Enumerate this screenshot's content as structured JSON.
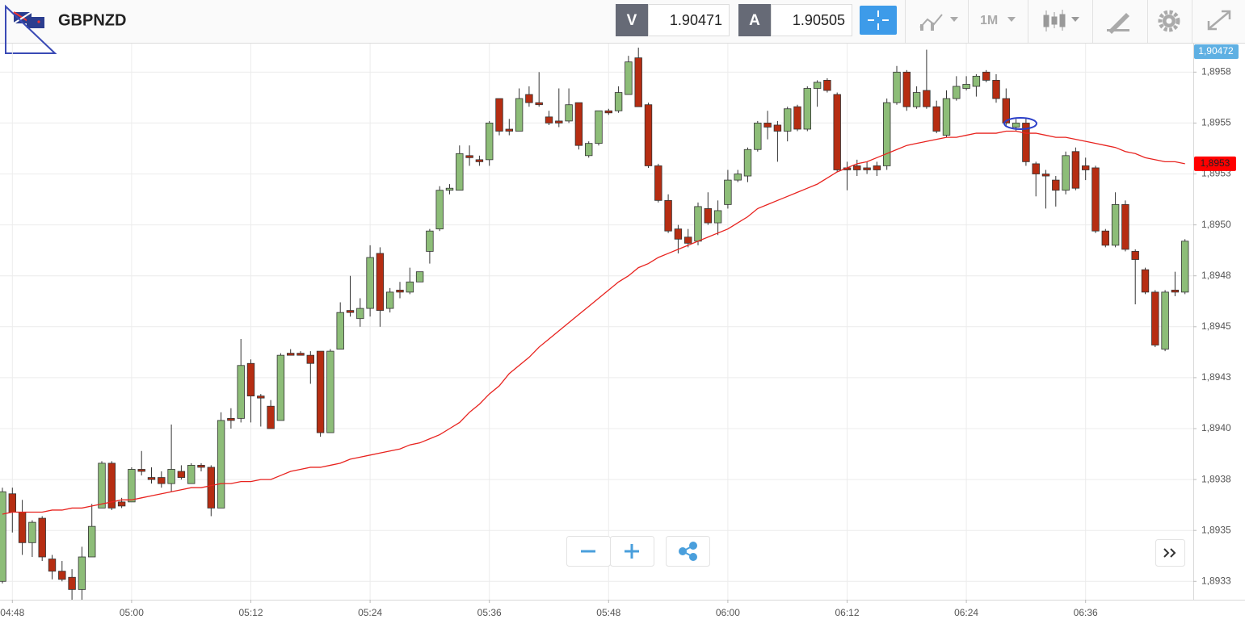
{
  "toolbar": {
    "bid_label": "V",
    "bid": 1.90471,
    "ask_label": "A",
    "ask": 1.90505,
    "timeframe": "1M"
  },
  "chart_data": {
    "type": "candlestick",
    "title": "GBPNZD",
    "categories": [
      null,
      "04:48",
      null,
      null,
      null,
      null,
      null,
      null,
      null,
      null,
      null,
      null,
      null,
      "05:00",
      null,
      null,
      null,
      null,
      null,
      null,
      null,
      null,
      null,
      null,
      null,
      "05:12",
      null,
      null,
      null,
      null,
      null,
      null,
      null,
      null,
      null,
      null,
      null,
      "05:24",
      null,
      null,
      null,
      null,
      null,
      null,
      null,
      null,
      null,
      null,
      null,
      "05:36",
      null,
      null,
      null,
      null,
      null,
      null,
      null,
      null,
      null,
      null,
      null,
      "05:48",
      null,
      null,
      null,
      null,
      null,
      null,
      null,
      null,
      null,
      null,
      null,
      "06:00",
      null,
      null,
      null,
      null,
      null,
      null,
      null,
      null,
      null,
      null,
      null,
      "06:12",
      null,
      null,
      null,
      null,
      null,
      null,
      null,
      null,
      null,
      null,
      null,
      "06:24",
      null,
      null,
      null,
      null,
      null,
      null,
      null,
      null,
      null,
      null,
      null,
      "06:36",
      null,
      null,
      null,
      null,
      null,
      null,
      null,
      null,
      null,
      null
    ],
    "open": [
      1.89325,
      1.89368,
      1.89359,
      1.89344,
      1.89356,
      1.89336,
      1.8933,
      1.89327,
      1.89321,
      1.89337,
      1.89361,
      1.89383,
      1.89364,
      1.89364,
      1.8938,
      1.89376,
      1.89376,
      1.89373,
      1.89379,
      1.89373,
      1.89382,
      1.89381,
      1.89361,
      1.89405,
      1.89405,
      1.89432,
      1.89416,
      1.89411,
      1.89404,
      1.89437,
      1.89437,
      1.89436,
      1.89438,
      1.89398,
      1.89439,
      1.89458,
      1.89454,
      1.89459,
      1.89486,
      1.89459,
      1.89468,
      1.89467,
      1.89472,
      1.89487,
      1.89498,
      1.89517,
      1.89517,
      1.89534,
      1.89532,
      1.89532,
      1.89562,
      1.89547,
      1.89546,
      1.89564,
      1.8956,
      1.89553,
      1.89551,
      1.89551,
      1.8956,
      1.89534,
      1.8954,
      1.89556,
      1.89556,
      1.89564,
      1.89582,
      1.89559,
      1.89529,
      1.89512,
      1.89498,
      1.89494,
      1.89492,
      1.89508,
      1.89501,
      1.8951,
      1.89522,
      1.89524,
      1.89537,
      1.8955,
      1.89549,
      1.89546,
      1.89558,
      1.89547,
      1.89567,
      1.89571,
      1.89564,
      1.89528,
      1.89529,
      1.89528,
      1.89529,
      1.89529,
      1.8956,
      1.89575,
      1.89558,
      1.89566,
      1.89558,
      1.89544,
      1.89562,
      1.89567,
      1.89568,
      1.89575,
      1.89571,
      1.89562,
      1.89548,
      1.8955,
      1.8953,
      1.89525,
      1.89522,
      1.89517,
      1.89536,
      1.89529,
      1.89528,
      1.89497,
      1.8949,
      1.8951,
      1.89487,
      1.89478,
      1.89467,
      1.89439,
      1.89468,
      1.89467
    ],
    "high": [
      1.89371,
      1.89371,
      1.89365,
      1.89355,
      1.89357,
      1.89338,
      1.89335,
      1.89331,
      1.89342,
      1.89363,
      1.89384,
      1.89384,
      1.89366,
      1.89381,
      1.89389,
      1.89381,
      1.89379,
      1.89402,
      1.89382,
      1.89383,
      1.89383,
      1.89382,
      1.89408,
      1.8941,
      1.89444,
      1.89434,
      1.89417,
      1.89414,
      1.89437,
      1.89439,
      1.89438,
      1.89438,
      1.89438,
      1.89439,
      1.89462,
      1.89475,
      1.89464,
      1.8949,
      1.89489,
      1.89469,
      1.89472,
      1.89479,
      1.89477,
      1.89498,
      1.89519,
      1.8952,
      1.89539,
      1.89539,
      1.89534,
      1.89551,
      1.89562,
      1.89552,
      1.89567,
      1.89568,
      1.89575,
      1.89556,
      1.89567,
      1.89567,
      1.8956,
      1.89541,
      1.89556,
      1.89557,
      1.89568,
      1.89583,
      1.89587,
      1.8956,
      1.8953,
      1.89515,
      1.895,
      1.89498,
      1.89511,
      1.89516,
      1.89512,
      1.89527,
      1.89527,
      1.89538,
      1.89551,
      1.89556,
      1.89551,
      1.89558,
      1.89559,
      1.89568,
      1.89571,
      1.89572,
      1.89565,
      1.89531,
      1.89532,
      1.89531,
      1.89531,
      1.89562,
      1.89578,
      1.89576,
      1.89568,
      1.89586,
      1.89561,
      1.89566,
      1.89573,
      1.89573,
      1.89574,
      1.89576,
      1.89574,
      1.89567,
      1.89552,
      1.89552,
      1.89531,
      1.89527,
      1.89524,
      1.89536,
      1.89538,
      1.89533,
      1.89529,
      1.89498,
      1.89516,
      1.89512,
      1.89488,
      1.89479,
      1.89468,
      1.89468,
      1.89477,
      1.89493
    ],
    "low": [
      1.89324,
      1.89349,
      1.89338,
      1.89337,
      1.89335,
      1.89326,
      1.89325,
      1.89316,
      1.89316,
      1.89337,
      1.89361,
      1.8936,
      1.89361,
      1.89364,
      1.89377,
      1.89373,
      1.89371,
      1.89369,
      1.89375,
      1.89373,
      1.89379,
      1.89357,
      1.89361,
      1.894,
      1.89403,
      1.89403,
      1.89401,
      1.894,
      1.89404,
      1.89436,
      1.89436,
      1.89422,
      1.89396,
      1.89398,
      1.89439,
      1.89455,
      1.8945,
      1.89455,
      1.8945,
      1.89457,
      1.89464,
      1.89466,
      1.89472,
      1.89481,
      1.89497,
      1.89515,
      1.89517,
      1.89529,
      1.89529,
      1.89529,
      1.89544,
      1.89544,
      1.89546,
      1.89558,
      1.89558,
      1.89549,
      1.89548,
      1.8955,
      1.89537,
      1.89533,
      1.89539,
      1.89554,
      1.89555,
      1.89564,
      1.89558,
      1.89528,
      1.89511,
      1.89496,
      1.89486,
      1.89489,
      1.8949,
      1.895,
      1.89495,
      1.89508,
      1.89521,
      1.89521,
      1.89536,
      1.89542,
      1.89531,
      1.89541,
      1.89546,
      1.89546,
      1.89558,
      1.89565,
      1.89526,
      1.89517,
      1.89524,
      1.89525,
      1.89524,
      1.89527,
      1.89559,
      1.89556,
      1.89557,
      1.89557,
      1.89545,
      1.89543,
      1.89561,
      1.89566,
      1.89563,
      1.8957,
      1.8956,
      1.89548,
      1.89546,
      1.89529,
      1.89514,
      1.89508,
      1.89509,
      1.89515,
      1.89517,
      1.89522,
      1.89496,
      1.89489,
      1.89489,
      1.89487,
      1.89461,
      1.89466,
      1.8944,
      1.89438,
      1.89465,
      1.89466
    ],
    "close": [
      1.89369,
      1.89359,
      1.89344,
      1.89354,
      1.89337,
      1.8933,
      1.89326,
      1.89321,
      1.89337,
      1.89352,
      1.89383,
      1.89361,
      1.89362,
      1.8938,
      1.89379,
      1.89375,
      1.89373,
      1.8938,
      1.89376,
      1.89382,
      1.89381,
      1.89361,
      1.89404,
      1.89404,
      1.89431,
      1.89416,
      1.89415,
      1.894,
      1.89436,
      1.89436,
      1.89436,
      1.89432,
      1.89398,
      1.89438,
      1.89457,
      1.89457,
      1.89459,
      1.89484,
      1.89458,
      1.89467,
      1.89467,
      1.89472,
      1.89477,
      1.89497,
      1.89517,
      1.89518,
      1.89535,
      1.89533,
      1.89531,
      1.8955,
      1.89546,
      1.89546,
      1.89562,
      1.8956,
      1.89559,
      1.8955,
      1.8955,
      1.89559,
      1.89539,
      1.8954,
      1.89556,
      1.89555,
      1.89565,
      1.8958,
      1.89558,
      1.89529,
      1.89512,
      1.89497,
      1.89493,
      1.89491,
      1.89509,
      1.89501,
      1.89507,
      1.89522,
      1.89525,
      1.89537,
      1.8955,
      1.89548,
      1.89546,
      1.89557,
      1.89547,
      1.89567,
      1.8957,
      1.89566,
      1.89527,
      1.89527,
      1.89527,
      1.89527,
      1.89527,
      1.8956,
      1.89575,
      1.89558,
      1.89565,
      1.89558,
      1.89546,
      1.89562,
      1.89568,
      1.89569,
      1.89573,
      1.89571,
      1.89562,
      1.8955,
      1.8955,
      1.89531,
      1.89525,
      1.89524,
      1.89517,
      1.89534,
      1.89518,
      1.89527,
      1.89497,
      1.8949,
      1.8951,
      1.89488,
      1.89483,
      1.89467,
      1.89441,
      1.89467,
      1.89467,
      1.89492
    ],
    "up_color": "#8dbd78",
    "down_color": "#b62d12",
    "line": {
      "color": "#e8231f",
      "values": [
        1.89358,
        1.89359,
        1.89359,
        1.89359,
        1.89359,
        1.8936,
        1.8936,
        1.89361,
        1.89361,
        1.89362,
        1.89363,
        1.89364,
        1.89365,
        1.89365,
        1.89366,
        1.89367,
        1.89368,
        1.89369,
        1.8937,
        1.89371,
        1.89371,
        1.89372,
        1.89373,
        1.89373,
        1.89374,
        1.89374,
        1.89375,
        1.89375,
        1.89377,
        1.89379,
        1.8938,
        1.89381,
        1.89381,
        1.89382,
        1.89383,
        1.89385,
        1.89386,
        1.89387,
        1.89388,
        1.89389,
        1.8939,
        1.89392,
        1.89393,
        1.89395,
        1.89397,
        1.894,
        1.89403,
        1.89408,
        1.89412,
        1.89417,
        1.89421,
        1.89427,
        1.89431,
        1.89435,
        1.8944,
        1.89444,
        1.89448,
        1.89452,
        1.89456,
        1.8946,
        1.89464,
        1.89468,
        1.89472,
        1.89475,
        1.89479,
        1.89481,
        1.89484,
        1.89486,
        1.89488,
        1.8949,
        1.89492,
        1.89494,
        1.89496,
        1.89498,
        1.89501,
        1.89504,
        1.89508,
        1.8951,
        1.89512,
        1.89514,
        1.89516,
        1.89518,
        1.8952,
        1.89523,
        1.89526,
        1.89528,
        1.8953,
        1.89531,
        1.89533,
        1.89535,
        1.89537,
        1.89539,
        1.8954,
        1.89541,
        1.89542,
        1.89543,
        1.89543,
        1.89544,
        1.89545,
        1.89545,
        1.89545,
        1.89546,
        1.89546,
        1.89545,
        1.89545,
        1.89544,
        1.89543,
        1.89543,
        1.89542,
        1.89541,
        1.8954,
        1.89539,
        1.89538,
        1.89536,
        1.89535,
        1.89533,
        1.89532,
        1.89531,
        1.89531,
        1.8953
      ]
    },
    "line_label": "1,8953",
    "price_tag": "1,90472",
    "ylim": [
      1.89316,
      1.89589
    ],
    "yticks": [
      {
        "value": 1.89575,
        "label": "1,8958"
      },
      {
        "value": 1.8955,
        "label": "1,8955"
      },
      {
        "value": 1.89525,
        "label": "1,8953"
      },
      {
        "value": 1.895,
        "label": "1,8950"
      },
      {
        "value": 1.89475,
        "label": "1,8948"
      },
      {
        "value": 1.8945,
        "label": "1,8945"
      },
      {
        "value": 1.89425,
        "label": "1,8943"
      },
      {
        "value": 1.894,
        "label": "1,8940"
      },
      {
        "value": 1.89375,
        "label": "1,8938"
      },
      {
        "value": 1.8935,
        "label": "1,8935"
      },
      {
        "value": 1.89325,
        "label": "1,8933"
      }
    ],
    "grid": true
  }
}
